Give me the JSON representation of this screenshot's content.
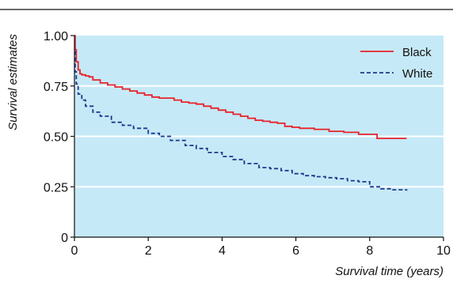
{
  "chart_data": {
    "type": "line",
    "title": "",
    "xlabel": "Survival time (years)",
    "ylabel": "Survival estimates",
    "xlim": [
      0,
      10
    ],
    "ylim": [
      0,
      1.0
    ],
    "x_ticks": [
      0,
      2,
      4,
      6,
      8,
      10
    ],
    "x_tick_labels": [
      "0",
      "2",
      "4",
      "6",
      "8",
      "10"
    ],
    "y_ticks": [
      0,
      0.25,
      0.5,
      0.75,
      1.0
    ],
    "y_tick_labels": [
      "0",
      "0.25",
      "0.50",
      "0.75",
      "1.00"
    ],
    "grid": "horizontal",
    "legend_position": "top-right",
    "plot_background": "#c6e9f7",
    "series": [
      {
        "name": "Black",
        "color": "#e8222b",
        "style": "solid",
        "x": [
          0,
          0.02,
          0.05,
          0.1,
          0.15,
          0.2,
          0.3,
          0.4,
          0.5,
          0.7,
          0.9,
          1.1,
          1.3,
          1.5,
          1.7,
          1.9,
          2.1,
          2.3,
          2.5,
          2.7,
          2.9,
          3.1,
          3.3,
          3.5,
          3.7,
          3.9,
          4.1,
          4.3,
          4.5,
          4.7,
          4.9,
          5.1,
          5.3,
          5.5,
          5.7,
          5.9,
          6.1,
          6.5,
          6.9,
          7.3,
          7.7,
          8.2,
          8.6,
          9.0
        ],
        "y": [
          1.0,
          0.93,
          0.87,
          0.83,
          0.81,
          0.805,
          0.8,
          0.795,
          0.78,
          0.765,
          0.755,
          0.745,
          0.735,
          0.725,
          0.715,
          0.705,
          0.695,
          0.69,
          0.69,
          0.68,
          0.67,
          0.665,
          0.66,
          0.65,
          0.64,
          0.63,
          0.62,
          0.61,
          0.6,
          0.59,
          0.58,
          0.575,
          0.57,
          0.565,
          0.55,
          0.545,
          0.54,
          0.535,
          0.525,
          0.52,
          0.51,
          0.49,
          0.49,
          0.49
        ]
      },
      {
        "name": "White",
        "color": "#1b3a8a",
        "style": "dashed",
        "x": [
          0,
          0.02,
          0.05,
          0.1,
          0.2,
          0.3,
          0.5,
          0.7,
          1.0,
          1.3,
          1.6,
          2.0,
          2.3,
          2.6,
          3.0,
          3.3,
          3.6,
          4.0,
          4.3,
          4.6,
          5.0,
          5.3,
          5.6,
          5.9,
          6.2,
          6.5,
          6.8,
          7.1,
          7.4,
          7.7,
          8.0,
          8.3,
          8.6,
          9.0
        ],
        "y": [
          0.92,
          0.82,
          0.76,
          0.71,
          0.68,
          0.65,
          0.62,
          0.6,
          0.57,
          0.555,
          0.54,
          0.515,
          0.5,
          0.48,
          0.455,
          0.44,
          0.42,
          0.4,
          0.385,
          0.365,
          0.345,
          0.34,
          0.33,
          0.315,
          0.305,
          0.3,
          0.295,
          0.29,
          0.28,
          0.275,
          0.25,
          0.24,
          0.235,
          0.23
        ]
      }
    ]
  }
}
